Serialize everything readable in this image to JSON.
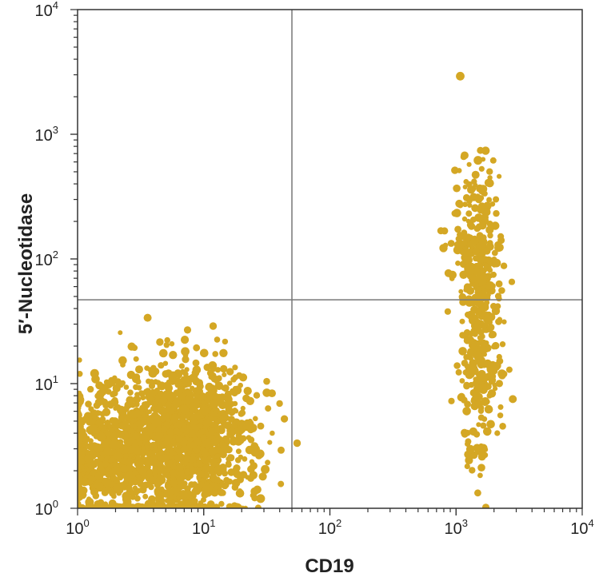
{
  "chart_data": {
    "type": "scatter",
    "title": "",
    "xlabel": "CD19",
    "ylabel": "5′-Nucleotidase",
    "xscale": "log",
    "yscale": "log",
    "xlim": [
      1,
      10000
    ],
    "ylim": [
      1,
      10000
    ],
    "grid": false,
    "x_ticks": [
      {
        "base": "10",
        "exp": "0"
      },
      {
        "base": "10",
        "exp": "1"
      },
      {
        "base": "10",
        "exp": "2"
      },
      {
        "base": "10",
        "exp": "3"
      },
      {
        "base": "10",
        "exp": "4"
      }
    ],
    "y_ticks": [
      {
        "base": "10",
        "exp": "0"
      },
      {
        "base": "10",
        "exp": "1"
      },
      {
        "base": "10",
        "exp": "2"
      },
      {
        "base": "10",
        "exp": "3"
      },
      {
        "base": "10",
        "exp": "4"
      }
    ],
    "quadrant_gates": {
      "x": 50,
      "y": 47
    },
    "point_color": "#d4a724",
    "populations": [
      {
        "x_center": 6.5,
        "y_center": 3.5,
        "x_spread_log": 0.28,
        "y_spread_log": 0.32,
        "count": 1400
      },
      {
        "x_center": 1.6,
        "y_center": 2.5,
        "x_spread_log": 0.2,
        "y_spread_log": 0.28,
        "count": 500
      },
      {
        "x_center": 1500,
        "y_center": 60,
        "x_spread_log": 0.09,
        "y_spread_log": 0.5,
        "count": 380
      },
      {
        "x_center": 1500,
        "y_center": 8,
        "x_spread_log": 0.08,
        "y_spread_log": 0.3,
        "count": 90
      }
    ]
  }
}
